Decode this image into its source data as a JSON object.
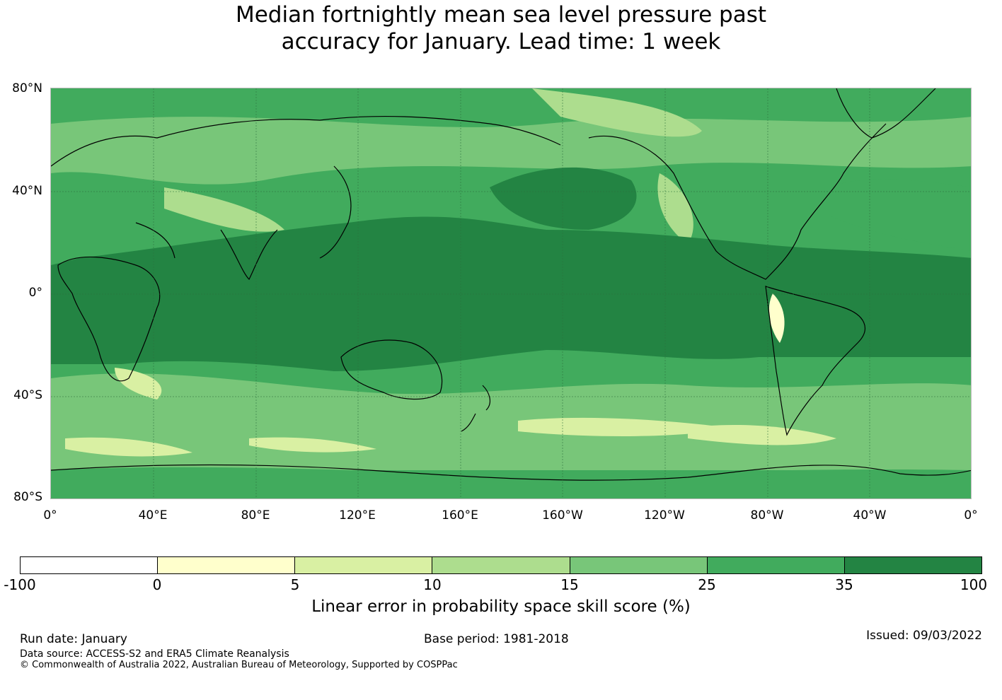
{
  "title_line1": "Median fortnightly mean sea level pressure past",
  "title_line2": "accuracy for January. Lead time: 1 week",
  "map": {
    "lat_labels": [
      "80°N",
      "40°N",
      "0°",
      "40°S",
      "80°S"
    ],
    "lon_labels": [
      "0°",
      "40°E",
      "80°E",
      "120°E",
      "160°E",
      "160°W",
      "120°W",
      "80°W",
      "40°W",
      "0°"
    ],
    "colors": {
      "ocean_background": "#3da45a",
      "gridline": "#2c6e3c",
      "coastline": "#000000"
    }
  },
  "colorbar": {
    "ticks": [
      "-100",
      "0",
      "5",
      "10",
      "15",
      "25",
      "35",
      "100"
    ],
    "colors": [
      "#ffffff",
      "#ffffcc",
      "#d9f0a3",
      "#addd8e",
      "#78c679",
      "#41ab5d",
      "#238443"
    ],
    "label": "Linear error in probability space skill score (%)"
  },
  "footer": {
    "run_date": "Run date: January",
    "base_period": "Base period: 1981-2018",
    "issued": "Issued: 09/03/2022",
    "data_source": "Data source: ACCESS-S2 and ERA5 Climate Reanalysis",
    "copyright": "© Commonwealth of Australia 2022, Australian Bureau of Meteorology, Supported by COSPPac"
  }
}
